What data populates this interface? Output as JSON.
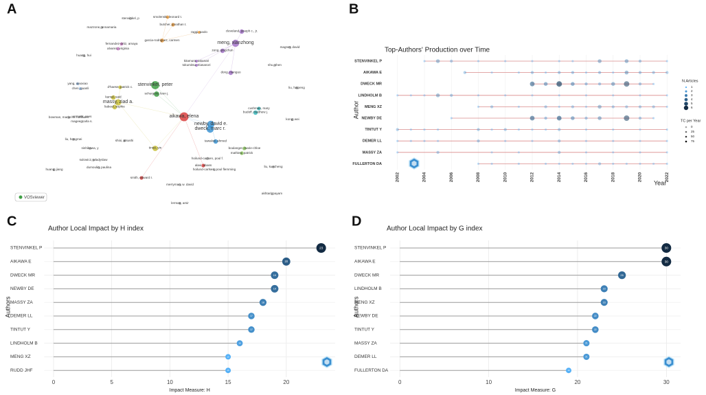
{
  "chart_data": [
    {
      "type": "network",
      "label": "A",
      "logo": "VOSviewer",
      "cluster_colors": [
        "#a474c9",
        "#e89a3c",
        "#3f9f45",
        "#d9413f",
        "#3d95d4",
        "#c9bf3a",
        "#3cbcc0",
        "#8fb4de",
        "#86c15b",
        "#b0b0b0",
        "#c77ac2"
      ],
      "nodes": [
        {
          "label": "stenvinkel, p",
          "cluster": 9
        },
        {
          "label": "smolenski, leonard t.",
          "cluster": 1
        },
        {
          "label": "butcher, jonathan t.",
          "cluster": 1
        },
        {
          "label": "raggi, paolo",
          "cluster": 1
        },
        {
          "label": "garcia-rodriguez, carmen",
          "cluster": 1
        },
        {
          "label": "mazzone, annamaria",
          "cluster": 9
        },
        {
          "label": "fernandez-ortiz, amaya",
          "cluster": 10
        },
        {
          "label": "alvarez, virginia",
          "cluster": 10
        },
        {
          "label": "huang, hui",
          "cluster": 9
        },
        {
          "label": "cleveland, joseph c., jr.",
          "cluster": 0
        },
        {
          "label": "meng, xianzhong",
          "cluster": 0
        },
        {
          "label": "zeng, qingchun",
          "cluster": 0
        },
        {
          "label": "dong, nianguo",
          "cluster": 0
        },
        {
          "label": "kitamura, takanari",
          "cluster": 0
        },
        {
          "label": "tokumitsu, masanori",
          "cluster": 0
        },
        {
          "label": "magnet, david",
          "cluster": 9
        },
        {
          "label": "shu, chen",
          "cluster": 9
        },
        {
          "label": "yang, xiaoxiao",
          "cluster": 7
        },
        {
          "label": "chen, guanli",
          "cluster": 7
        },
        {
          "label": "d'haese, patrick c.",
          "cluster": 5
        },
        {
          "label": "stenvinkel, peter",
          "cluster": 2
        },
        {
          "label": "schurgers, leon j.",
          "cluster": 2
        },
        {
          "label": "kamal, said",
          "cluster": 5
        },
        {
          "label": "massy, ziad a.",
          "cluster": 5
        },
        {
          "label": "liabeuf, sophie",
          "cluster": 5
        },
        {
          "label": "aikawa, elena",
          "cluster": 3
        },
        {
          "label": "liu, haipeng",
          "cluster": 9
        },
        {
          "label": "cushman, mary",
          "cluster": 6
        },
        {
          "label": "budoff, matthew j.",
          "cluster": 6
        },
        {
          "label": "kong, wei",
          "cluster": 9
        },
        {
          "label": "newby, david e.",
          "cluster": 4
        },
        {
          "label": "dweck, marc r.",
          "cluster": 4
        },
        {
          "label": "bowman, marion a. hofmann",
          "cluster": 9
        },
        {
          "label": "vermeer, cees",
          "cluster": 9
        },
        {
          "label": "magee, carla s.",
          "cluster": 9
        },
        {
          "label": "liu, hongmei",
          "cluster": 9
        },
        {
          "label": "shioi, atsushi",
          "cluster": 9
        },
        {
          "label": "tintut, yin",
          "cluster": 5
        },
        {
          "label": "tawakol, ahmed",
          "cluster": 4
        },
        {
          "label": "boulanger, marie-chloe",
          "cluster": 8
        },
        {
          "label": "mathieu, patrick",
          "cluster": 8
        },
        {
          "label": "nishikawa, y",
          "cluster": 9
        },
        {
          "label": "hoilund-carlsen, poul f.",
          "cluster": 9
        },
        {
          "label": "alavi, abass",
          "cluster": 3
        },
        {
          "label": "hoilund-carlsen, poul flemming",
          "cluster": 9
        },
        {
          "label": "sulowicz, wladyslaw",
          "cluster": 9
        },
        {
          "label": "dumoulin, paulina",
          "cluster": 9
        },
        {
          "label": "huang, jiang",
          "cluster": 9
        },
        {
          "label": "liu, kuecheng",
          "cluster": 9
        },
        {
          "label": "smith, edward r.",
          "cluster": 3
        },
        {
          "label": "merryman, w. david",
          "cluster": 9
        },
        {
          "label": "akhtari, payam",
          "cluster": 9
        },
        {
          "label": "lerman, amir",
          "cluster": 9
        }
      ]
    },
    {
      "type": "timeline",
      "label": "B",
      "title": "Top-Authors' Production over Time",
      "xlabel": "Year",
      "ylabel": "Author",
      "xlim": [
        2001.3,
        2022.7
      ],
      "xticks": [
        2002,
        2004,
        2006,
        2008,
        2010,
        2012,
        2014,
        2016,
        2018,
        2020,
        2022
      ],
      "line_color": "#d98a8a",
      "color_low": "#56b1f7",
      "color_high": "#132b43",
      "size_legend": {
        "title": "N.Articles",
        "values": [
          1,
          2,
          3,
          4,
          5,
          6
        ]
      },
      "tc_legend": {
        "title": "TC per Year",
        "values": [
          0,
          25,
          50,
          75
        ]
      },
      "series": [
        {
          "name": "STENVINKEL P",
          "years": [
            2004,
            2005,
            2006,
            2008,
            2010,
            2012,
            2014,
            2015,
            2017,
            2019,
            2020,
            2022
          ],
          "articles": [
            1,
            3,
            2,
            1,
            1,
            1,
            1,
            1,
            3,
            3,
            2,
            1
          ],
          "tc": [
            2,
            8,
            5,
            3,
            2,
            2,
            4,
            3,
            10,
            12,
            6,
            1
          ]
        },
        {
          "name": "AIKAWA E",
          "years": [
            2007,
            2009,
            2011,
            2012,
            2013,
            2014,
            2015,
            2016,
            2017,
            2018,
            2019,
            2020,
            2021,
            2022
          ],
          "articles": [
            2,
            1,
            1,
            2,
            1,
            2,
            2,
            1,
            2,
            1,
            3,
            2,
            2,
            2
          ],
          "tc": [
            6,
            2,
            3,
            8,
            4,
            9,
            10,
            5,
            9,
            4,
            14,
            8,
            6,
            3
          ]
        },
        {
          "name": "DWECK MR",
          "years": [
            2012,
            2013,
            2014,
            2015,
            2016,
            2017,
            2018,
            2019,
            2020,
            2021
          ],
          "articles": [
            4,
            3,
            5,
            3,
            2,
            2,
            3,
            5,
            2,
            1
          ],
          "tc": [
            30,
            20,
            40,
            22,
            12,
            10,
            15,
            25,
            8,
            3
          ]
        },
        {
          "name": "LINDHOLM B",
          "years": [
            2002,
            2003,
            2004,
            2005,
            2006,
            2008,
            2010,
            2012,
            2014,
            2016,
            2018,
            2020,
            2022
          ],
          "articles": [
            1,
            1,
            1,
            3,
            2,
            1,
            1,
            1,
            1,
            1,
            1,
            1,
            1
          ],
          "tc": [
            2,
            1,
            2,
            9,
            6,
            2,
            2,
            1,
            2,
            2,
            1,
            2,
            1
          ]
        },
        {
          "name": "MENG XZ",
          "years": [
            2008,
            2009,
            2011,
            2013,
            2014,
            2015,
            2016,
            2017,
            2018,
            2019,
            2020,
            2021,
            2022
          ],
          "articles": [
            1,
            2,
            1,
            2,
            1,
            2,
            1,
            3,
            2,
            2,
            2,
            2,
            1
          ],
          "tc": [
            2,
            4,
            2,
            5,
            3,
            5,
            2,
            7,
            5,
            4,
            4,
            3,
            1
          ]
        },
        {
          "name": "NEWBY DE",
          "years": [
            2006,
            2012,
            2013,
            2014,
            2015,
            2016,
            2017,
            2019,
            2020,
            2021
          ],
          "articles": [
            1,
            4,
            2,
            4,
            3,
            2,
            3,
            5,
            2,
            1
          ],
          "tc": [
            3,
            30,
            12,
            35,
            20,
            10,
            14,
            25,
            8,
            3
          ]
        },
        {
          "name": "TINTUT Y",
          "years": [
            2002,
            2003,
            2004,
            2005,
            2008,
            2009,
            2010,
            2011,
            2012,
            2013,
            2014,
            2016,
            2018,
            2020,
            2022
          ],
          "articles": [
            2,
            1,
            1,
            1,
            2,
            1,
            2,
            1,
            1,
            1,
            2,
            1,
            1,
            1,
            1
          ],
          "tc": [
            5,
            2,
            2,
            2,
            6,
            2,
            5,
            2,
            2,
            2,
            5,
            2,
            2,
            1,
            1
          ]
        },
        {
          "name": "DEMER LL",
          "years": [
            2002,
            2003,
            2004,
            2005,
            2008,
            2010,
            2012,
            2014,
            2016,
            2018,
            2020,
            2022
          ],
          "articles": [
            1,
            1,
            1,
            1,
            2,
            1,
            1,
            2,
            1,
            1,
            1,
            1
          ],
          "tc": [
            3,
            2,
            2,
            2,
            6,
            2,
            2,
            5,
            2,
            2,
            1,
            1
          ]
        },
        {
          "name": "MASSY ZA",
          "years": [
            2002,
            2005,
            2009,
            2011,
            2014,
            2016,
            2018,
            2020,
            2022
          ],
          "articles": [
            1,
            2,
            1,
            1,
            2,
            1,
            1,
            1,
            1
          ],
          "tc": [
            2,
            5,
            2,
            2,
            6,
            2,
            2,
            2,
            1
          ]
        },
        {
          "name": "FULLERTON DA",
          "years": [
            2008,
            2009,
            2011,
            2013,
            2014,
            2015,
            2016,
            2017,
            2018,
            2019,
            2020,
            2021,
            2022
          ],
          "articles": [
            1,
            1,
            1,
            1,
            1,
            1,
            1,
            2,
            1,
            1,
            1,
            1,
            1
          ],
          "tc": [
            2,
            2,
            2,
            2,
            2,
            2,
            2,
            5,
            2,
            2,
            2,
            1,
            1
          ]
        }
      ]
    },
    {
      "type": "lollipop",
      "label": "C",
      "title": "Author Local Impact by H index",
      "xlabel": "Impact Measure: H",
      "ylabel": "Authors",
      "categories": [
        "STENVINKEL P",
        "AIKAWA E",
        "DWECK MR",
        "NEWBY DE",
        "MASSY ZA",
        "DEMER LL",
        "TINTUT Y",
        "LINDHOLM B",
        "MENG XZ",
        "RUDD JHF"
      ],
      "values": [
        23,
        20,
        19,
        19,
        18,
        17,
        17,
        16,
        15,
        15
      ],
      "xlim": [
        -0.8,
        24.2
      ],
      "xticks": [
        0,
        5,
        10,
        15,
        20
      ],
      "color_low": "#56b1f7",
      "color_high": "#132b43",
      "grid": true
    },
    {
      "type": "lollipop",
      "label": "D",
      "title": "Author Local Impact by G index",
      "xlabel": "Impact Measure: G",
      "ylabel": "Authors",
      "categories": [
        "STENVINKEL P",
        "AIKAWA E",
        "DWECK MR",
        "LINDHOLM B",
        "MENG XZ",
        "NEWBY DE",
        "TINTUT Y",
        "MASSY ZA",
        "DEMER LL",
        "FULLERTON DA"
      ],
      "values": [
        30,
        30,
        25,
        23,
        23,
        22,
        22,
        21,
        21,
        19
      ],
      "xlim": [
        -1.1,
        31.6
      ],
      "xticks": [
        0,
        10,
        20,
        30
      ],
      "color_low": "#56b1f7",
      "color_high": "#132b43",
      "grid": true
    }
  ]
}
